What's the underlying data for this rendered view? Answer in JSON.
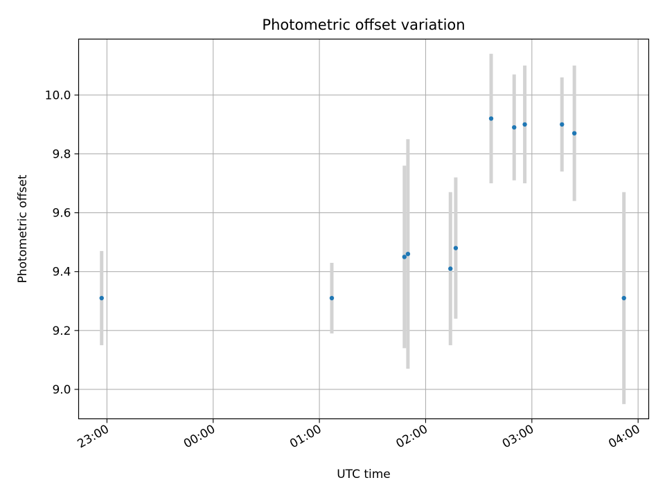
{
  "chart_data": {
    "type": "scatter",
    "title": "Photometric offset variation",
    "xlabel": "UTC time",
    "ylabel": "Photometric offset",
    "grid": true,
    "x_ticks": [
      "23:00",
      "00:00",
      "01:00",
      "02:00",
      "03:00",
      "04:00"
    ],
    "y_ticks": [
      "9.0",
      "9.2",
      "9.4",
      "9.6",
      "9.8",
      "10.0"
    ],
    "xlim": [
      "22:44",
      "04:06"
    ],
    "ylim": [
      8.9,
      10.19
    ],
    "series": [
      {
        "x": [
          "22:57",
          "01:07",
          "01:48",
          "01:50",
          "02:14",
          "02:17",
          "02:37",
          "02:50",
          "02:56",
          "03:17",
          "03:24",
          "03:52"
        ],
        "y": [
          9.31,
          9.31,
          9.45,
          9.46,
          9.41,
          9.48,
          9.92,
          9.89,
          9.9,
          9.9,
          9.87,
          9.31
        ],
        "err": [
          0.16,
          0.12,
          0.31,
          0.39,
          0.26,
          0.24,
          0.22,
          0.18,
          0.2,
          0.16,
          0.23,
          0.36
        ]
      }
    ],
    "marker_color": "#1f77b4",
    "errorbar_color": "#d3d3d3"
  }
}
